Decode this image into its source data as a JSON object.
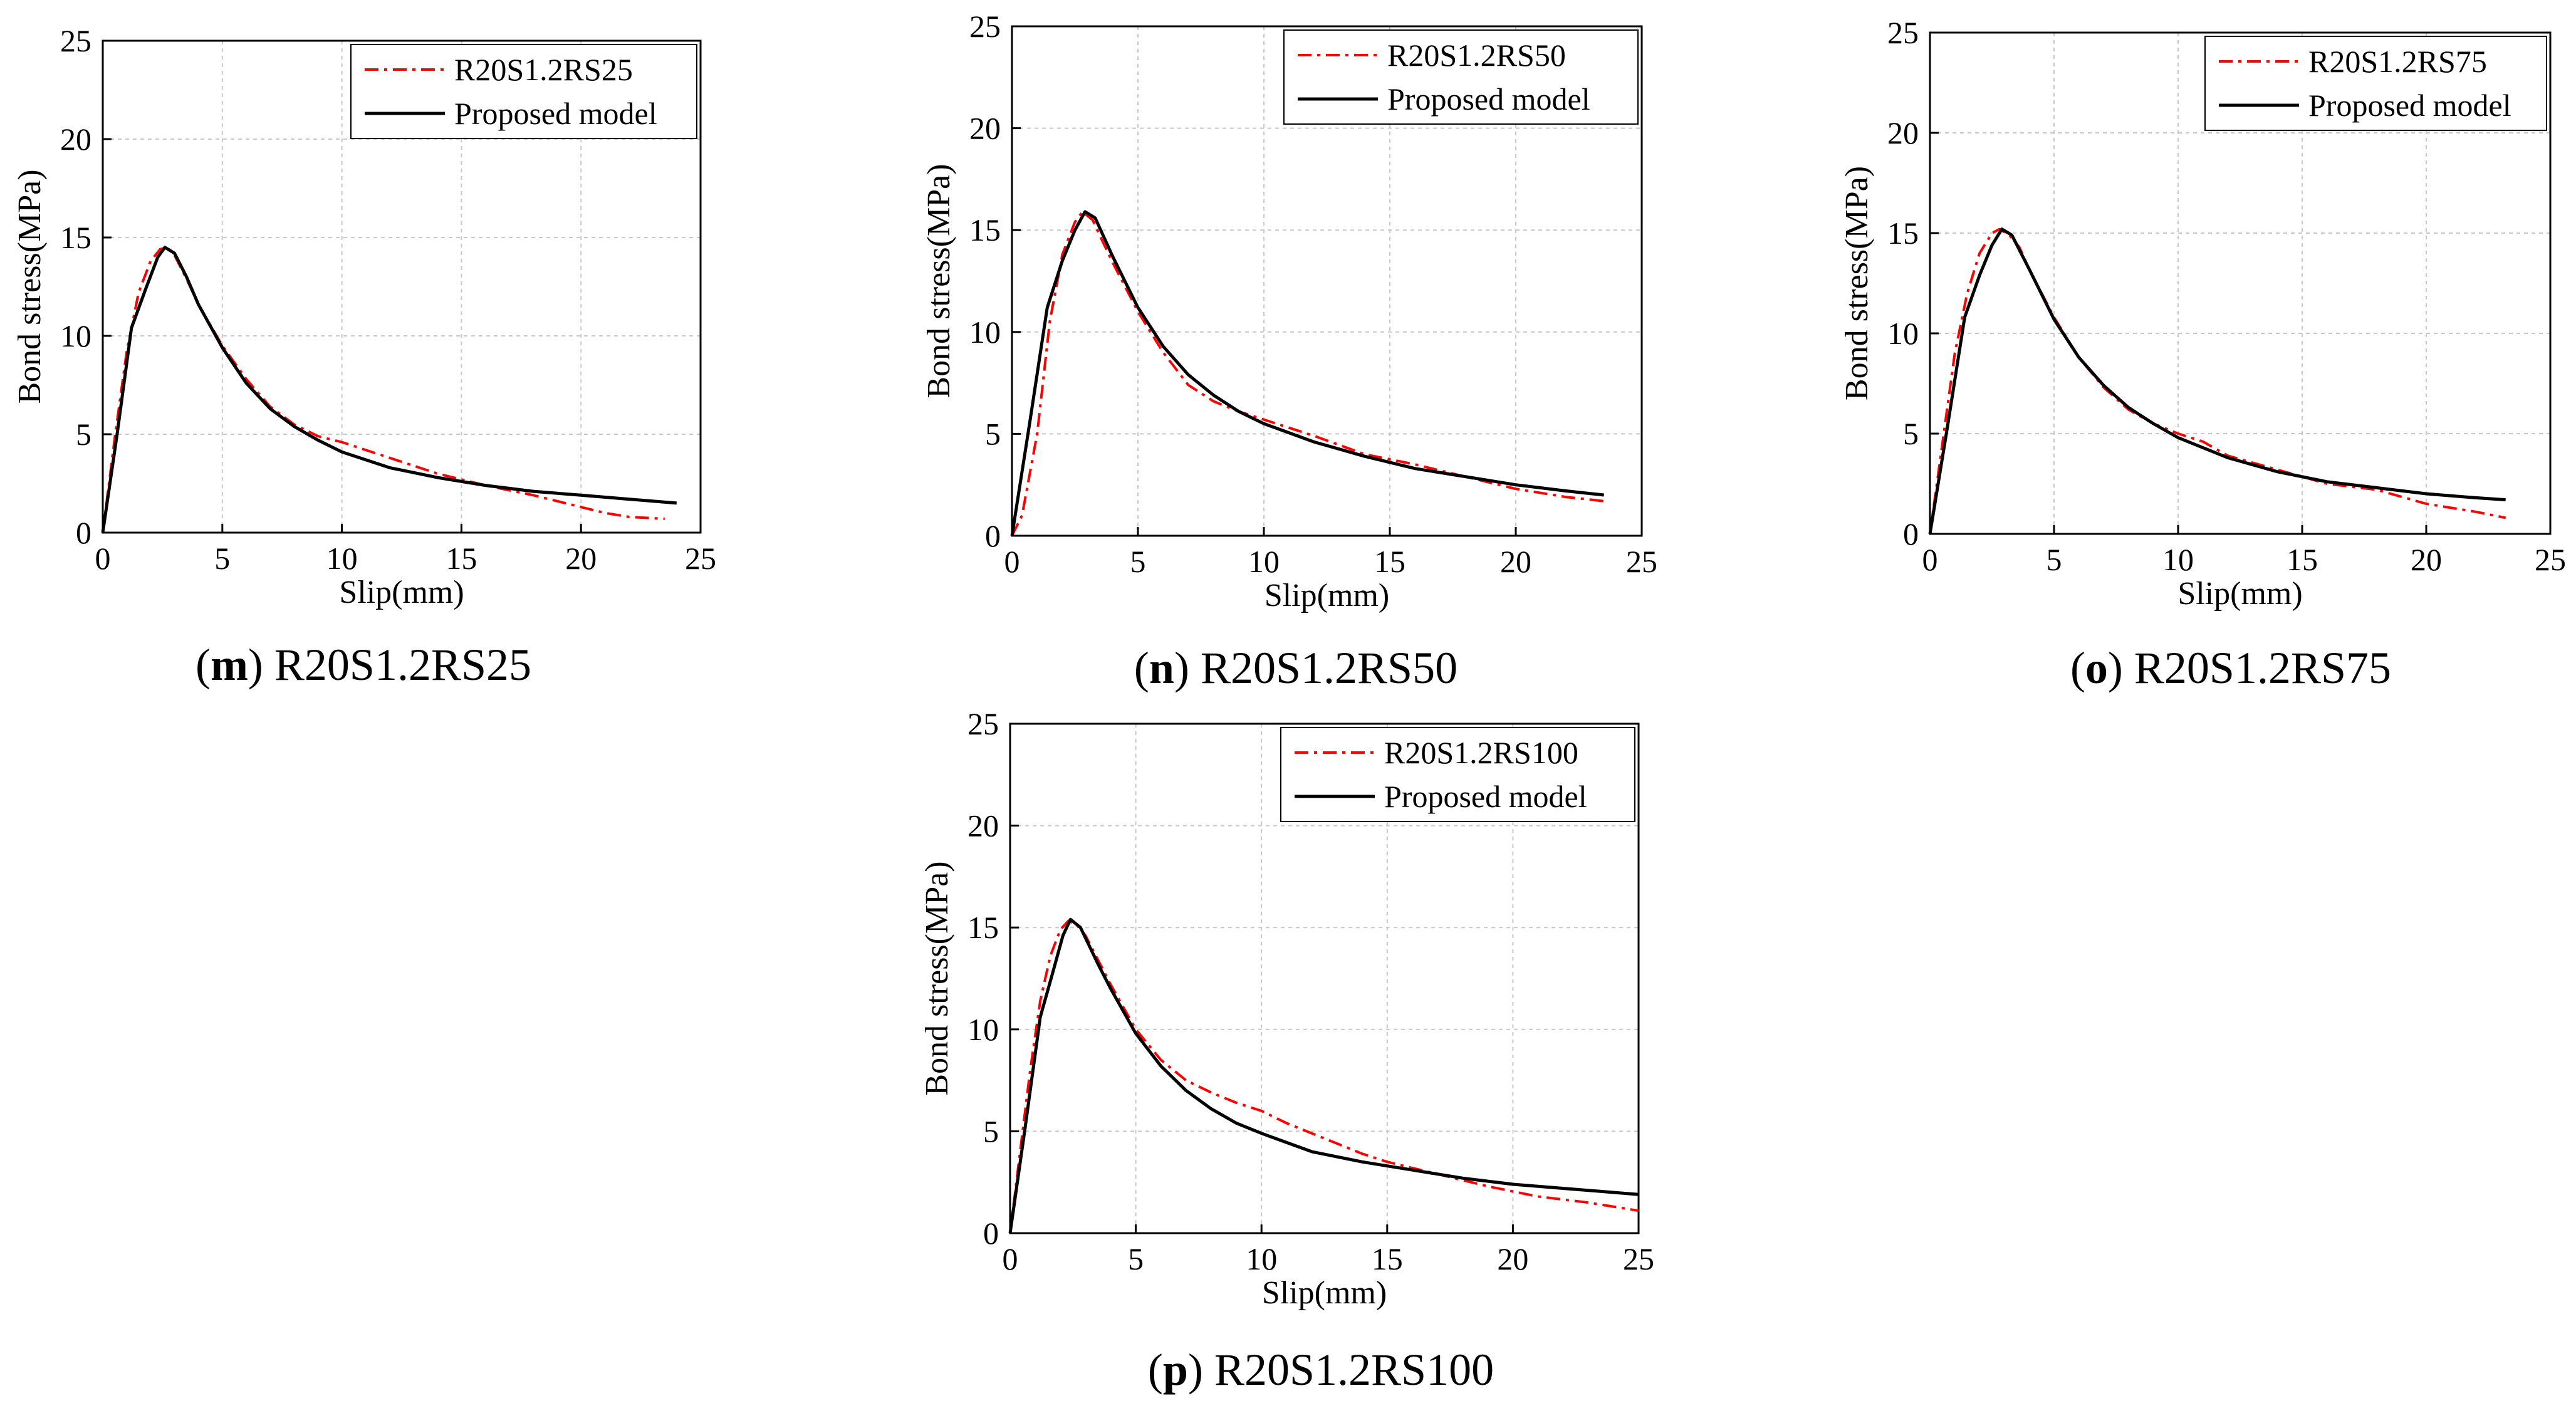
{
  "chart_data": [
    {
      "type": "line",
      "panel_letter": "m",
      "caption": "R20S1.2RS25",
      "xlabel": "Slip(mm)",
      "ylabel": "Bond stress(MPa)",
      "xlim": [
        0,
        25
      ],
      "ylim": [
        0,
        25
      ],
      "xticks": [
        "0",
        "5",
        "10",
        "15",
        "20",
        "25"
      ],
      "yticks": [
        "0",
        "5",
        "10",
        "15",
        "20",
        "25"
      ],
      "grid": true,
      "legend_position": "top-right",
      "series": [
        {
          "name": "R20S1.2RS25",
          "style": "dash-dot",
          "color": "#ff0000",
          "points": [
            [
              0,
              0
            ],
            [
              0.5,
              4.8
            ],
            [
              1.0,
              9.2
            ],
            [
              1.5,
              12.2
            ],
            [
              2.0,
              13.8
            ],
            [
              2.4,
              14.4
            ],
            [
              2.7,
              14.5
            ],
            [
              3.0,
              14.1
            ],
            [
              3.5,
              12.9
            ],
            [
              4.0,
              11.6
            ],
            [
              5.0,
              9.5
            ],
            [
              6.0,
              7.8
            ],
            [
              7.0,
              6.4
            ],
            [
              8.0,
              5.5
            ],
            [
              9.0,
              4.9
            ],
            [
              10.0,
              4.6
            ],
            [
              12.0,
              3.8
            ],
            [
              14.0,
              3.0
            ],
            [
              16.0,
              2.4
            ],
            [
              18.0,
              1.9
            ],
            [
              20.0,
              1.3
            ],
            [
              21.0,
              1.0
            ],
            [
              22.0,
              0.8
            ],
            [
              23.5,
              0.7
            ]
          ]
        },
        {
          "name": "Proposed model",
          "style": "solid",
          "color": "#000000",
          "points": [
            [
              0,
              0
            ],
            [
              0.6,
              5.0
            ],
            [
              1.2,
              10.4
            ],
            [
              1.8,
              12.4
            ],
            [
              2.3,
              14.0
            ],
            [
              2.6,
              14.5
            ],
            [
              3.0,
              14.2
            ],
            [
              3.5,
              13.0
            ],
            [
              4.0,
              11.6
            ],
            [
              5.0,
              9.4
            ],
            [
              6.0,
              7.6
            ],
            [
              7.0,
              6.3
            ],
            [
              8.0,
              5.4
            ],
            [
              9.0,
              4.7
            ],
            [
              10.0,
              4.1
            ],
            [
              12.0,
              3.3
            ],
            [
              14.0,
              2.8
            ],
            [
              16.0,
              2.4
            ],
            [
              18.0,
              2.1
            ],
            [
              20.0,
              1.9
            ],
            [
              22.0,
              1.7
            ],
            [
              24.0,
              1.5
            ]
          ]
        }
      ]
    },
    {
      "type": "line",
      "panel_letter": "n",
      "caption": "R20S1.2RS50",
      "xlabel": "Slip(mm)",
      "ylabel": "Bond stress(MPa)",
      "xlim": [
        0,
        25
      ],
      "ylim": [
        0,
        25
      ],
      "xticks": [
        "0",
        "5",
        "10",
        "15",
        "20",
        "25"
      ],
      "yticks": [
        "0",
        "5",
        "10",
        "15",
        "20",
        "25"
      ],
      "grid": true,
      "legend_position": "top-right",
      "series": [
        {
          "name": "R20S1.2RS50",
          "style": "dash-dot",
          "color": "#ff0000",
          "points": [
            [
              0,
              0
            ],
            [
              0.4,
              1.0
            ],
            [
              1.0,
              5.0
            ],
            [
              1.5,
              10.5
            ],
            [
              2.0,
              13.8
            ],
            [
              2.5,
              15.4
            ],
            [
              2.8,
              15.9
            ],
            [
              3.2,
              15.5
            ],
            [
              3.5,
              14.7
            ],
            [
              4.0,
              13.4
            ],
            [
              5.0,
              11.0
            ],
            [
              6.0,
              9.0
            ],
            [
              7.0,
              7.4
            ],
            [
              8.0,
              6.6
            ],
            [
              9.0,
              6.1
            ],
            [
              10.0,
              5.7
            ],
            [
              12.0,
              4.9
            ],
            [
              14.0,
              4.0
            ],
            [
              16.0,
              3.5
            ],
            [
              18.0,
              2.9
            ],
            [
              20.0,
              2.3
            ],
            [
              22.0,
              1.9
            ],
            [
              23.5,
              1.7
            ]
          ]
        },
        {
          "name": "Proposed model",
          "style": "solid",
          "color": "#000000",
          "points": [
            [
              0,
              0
            ],
            [
              0.7,
              5.5
            ],
            [
              1.4,
              11.2
            ],
            [
              2.0,
              13.5
            ],
            [
              2.5,
              15.0
            ],
            [
              2.9,
              15.9
            ],
            [
              3.3,
              15.6
            ],
            [
              4.0,
              13.7
            ],
            [
              5.0,
              11.2
            ],
            [
              6.0,
              9.3
            ],
            [
              7.0,
              7.9
            ],
            [
              8.0,
              6.9
            ],
            [
              9.0,
              6.1
            ],
            [
              10.0,
              5.5
            ],
            [
              12.0,
              4.6
            ],
            [
              14.0,
              3.9
            ],
            [
              16.0,
              3.3
            ],
            [
              18.0,
              2.9
            ],
            [
              20.0,
              2.5
            ],
            [
              22.0,
              2.2
            ],
            [
              23.5,
              2.0
            ]
          ]
        }
      ]
    },
    {
      "type": "line",
      "panel_letter": "o",
      "caption": "R20S1.2RS75",
      "xlabel": "Slip(mm)",
      "ylabel": "Bond stress(MPa)",
      "xlim": [
        0,
        25
      ],
      "ylim": [
        0,
        25
      ],
      "xticks": [
        "0",
        "5",
        "10",
        "15",
        "20",
        "25"
      ],
      "yticks": [
        "0",
        "5",
        "10",
        "15",
        "20",
        "25"
      ],
      "grid": true,
      "legend_position": "top-right",
      "series": [
        {
          "name": "R20S1.2RS75",
          "style": "dash-dot",
          "color": "#ff0000",
          "points": [
            [
              0,
              0
            ],
            [
              0.5,
              4.5
            ],
            [
              1.0,
              9.0
            ],
            [
              1.5,
              12.0
            ],
            [
              2.0,
              14.0
            ],
            [
              2.5,
              15.0
            ],
            [
              2.8,
              15.2
            ],
            [
              3.2,
              14.9
            ],
            [
              3.6,
              14.3
            ],
            [
              4.0,
              13.2
            ],
            [
              5.0,
              10.8
            ],
            [
              6.0,
              8.8
            ],
            [
              7.0,
              7.3
            ],
            [
              8.0,
              6.2
            ],
            [
              9.0,
              5.5
            ],
            [
              10.0,
              5.0
            ],
            [
              11.0,
              4.6
            ],
            [
              12.0,
              3.9
            ],
            [
              14.0,
              3.2
            ],
            [
              16.0,
              2.5
            ],
            [
              18.0,
              2.2
            ],
            [
              20.0,
              1.5
            ],
            [
              22.0,
              1.1
            ],
            [
              23.2,
              0.8
            ]
          ]
        },
        {
          "name": "Proposed model",
          "style": "solid",
          "color": "#000000",
          "points": [
            [
              0,
              0
            ],
            [
              0.7,
              5.3
            ],
            [
              1.4,
              10.8
            ],
            [
              2.0,
              12.9
            ],
            [
              2.5,
              14.4
            ],
            [
              2.9,
              15.2
            ],
            [
              3.3,
              14.9
            ],
            [
              4.0,
              13.2
            ],
            [
              5.0,
              10.7
            ],
            [
              6.0,
              8.8
            ],
            [
              7.0,
              7.4
            ],
            [
              8.0,
              6.3
            ],
            [
              9.0,
              5.5
            ],
            [
              10.0,
              4.8
            ],
            [
              12.0,
              3.8
            ],
            [
              14.0,
              3.1
            ],
            [
              16.0,
              2.6
            ],
            [
              18.0,
              2.3
            ],
            [
              20.0,
              2.0
            ],
            [
              22.0,
              1.8
            ],
            [
              23.2,
              1.7
            ]
          ]
        }
      ]
    },
    {
      "type": "line",
      "panel_letter": "p",
      "caption": "R20S1.2RS100",
      "xlabel": "Slip(mm)",
      "ylabel": "Bond stress(MPa)",
      "xlim": [
        0,
        25
      ],
      "ylim": [
        0,
        25
      ],
      "xticks": [
        "0",
        "5",
        "10",
        "15",
        "20",
        "25"
      ],
      "yticks": [
        "0",
        "5",
        "10",
        "15",
        "20",
        "25"
      ],
      "grid": true,
      "legend_position": "top-right",
      "series": [
        {
          "name": "R20S1.2RS100",
          "style": "dash-dot",
          "color": "#ff0000",
          "points": [
            [
              0,
              0
            ],
            [
              0.4,
              4.0
            ],
            [
              0.8,
              8.0
            ],
            [
              1.2,
              11.4
            ],
            [
              1.6,
              13.6
            ],
            [
              2.0,
              14.9
            ],
            [
              2.3,
              15.3
            ],
            [
              2.6,
              15.2
            ],
            [
              3.0,
              14.6
            ],
            [
              3.5,
              13.4
            ],
            [
              4.0,
              12.2
            ],
            [
              5.0,
              10.0
            ],
            [
              6.0,
              8.5
            ],
            [
              7.0,
              7.5
            ],
            [
              8.0,
              6.9
            ],
            [
              9.0,
              6.4
            ],
            [
              10.0,
              6.0
            ],
            [
              11.0,
              5.4
            ],
            [
              12.0,
              4.9
            ],
            [
              13.0,
              4.4
            ],
            [
              14.0,
              3.9
            ],
            [
              15.0,
              3.5
            ],
            [
              17.0,
              2.9
            ],
            [
              19.0,
              2.3
            ],
            [
              21.0,
              1.8
            ],
            [
              23.0,
              1.5
            ],
            [
              25.0,
              1.1
            ]
          ]
        },
        {
          "name": "Proposed model",
          "style": "solid",
          "color": "#000000",
          "points": [
            [
              0,
              0
            ],
            [
              0.6,
              5.2
            ],
            [
              1.2,
              10.6
            ],
            [
              1.7,
              12.8
            ],
            [
              2.1,
              14.6
            ],
            [
              2.4,
              15.4
            ],
            [
              2.8,
              15.0
            ],
            [
              3.5,
              13.2
            ],
            [
              4.0,
              12.0
            ],
            [
              5.0,
              9.8
            ],
            [
              6.0,
              8.2
            ],
            [
              7.0,
              7.0
            ],
            [
              8.0,
              6.1
            ],
            [
              9.0,
              5.4
            ],
            [
              10.0,
              4.9
            ],
            [
              12.0,
              4.0
            ],
            [
              14.0,
              3.5
            ],
            [
              16.0,
              3.1
            ],
            [
              18.0,
              2.7
            ],
            [
              20.0,
              2.4
            ],
            [
              22.0,
              2.2
            ],
            [
              25.0,
              1.9
            ]
          ]
        }
      ]
    }
  ]
}
